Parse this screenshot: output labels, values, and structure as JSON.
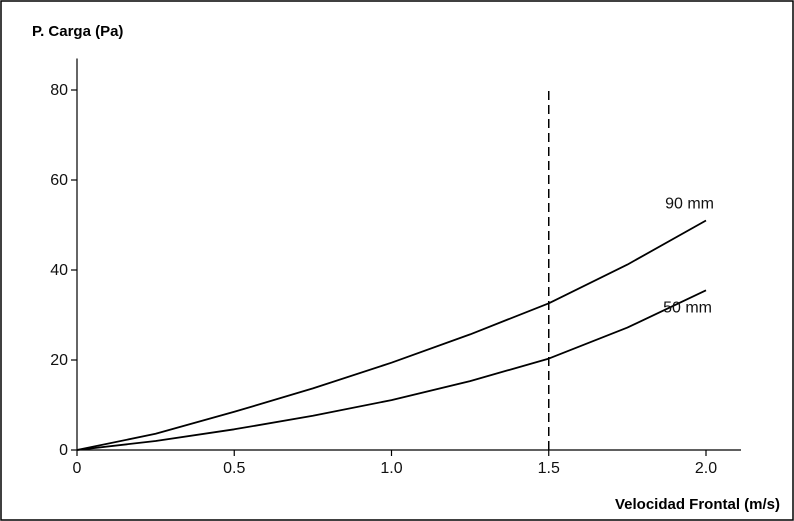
{
  "chart_data": {
    "type": "line",
    "ylabel": "P. Carga (Pa)",
    "xlabel": "Velocidad Frontal (m/s)",
    "xlim": [
      0,
      2.1
    ],
    "ylim": [
      0,
      87
    ],
    "xticks": [
      0,
      0.5,
      1.0,
      1.5,
      2.0
    ],
    "xtick_labels": [
      "0",
      "0.5",
      "1.0",
      "1.5",
      "2.0"
    ],
    "yticks": [
      0,
      20,
      40,
      60,
      80
    ],
    "ytick_labels": [
      "0",
      "20",
      "40",
      "60",
      "80"
    ],
    "grid": false,
    "legend": "none",
    "reference_line": {
      "orientation": "vertical",
      "x": 1.5,
      "style": "dashed"
    },
    "series": [
      {
        "name": "90 mm",
        "x": [
          0,
          0.25,
          0.5,
          0.75,
          1.0,
          1.25,
          1.5,
          1.75,
          2.0
        ],
        "values": [
          0,
          3.6,
          8.5,
          13.7,
          19.4,
          25.7,
          32.6,
          41.2,
          51.0
        ]
      },
      {
        "name": "50 mm",
        "x": [
          0,
          0.25,
          0.5,
          0.75,
          1.0,
          1.25,
          1.5,
          1.75,
          2.0
        ],
        "values": [
          0,
          2.0,
          4.6,
          7.6,
          11.1,
          15.3,
          20.3,
          27.2,
          35.5
        ]
      }
    ]
  }
}
